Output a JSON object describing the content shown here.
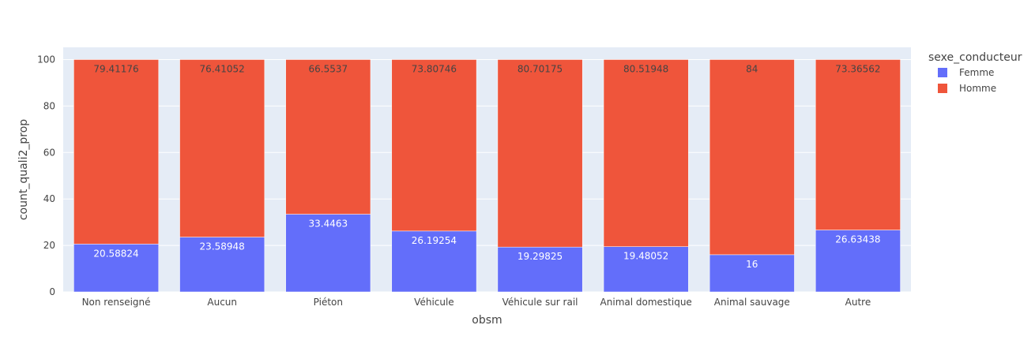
{
  "chart_data": {
    "type": "bar",
    "barmode": "stack",
    "categories": [
      "Non renseigné",
      "Aucun",
      "Piéton",
      "Véhicule",
      "Véhicule sur rail",
      "Animal domestique",
      "Animal sauvage",
      "Autre"
    ],
    "series": [
      {
        "name": "Femme",
        "color": "#636efa",
        "values": [
          20.58824,
          23.58948,
          33.4463,
          26.19254,
          19.29825,
          19.48052,
          16,
          26.63438
        ],
        "labels": [
          "20.58824",
          "23.58948",
          "33.4463",
          "26.19254",
          "19.29825",
          "19.48052",
          "16",
          "26.63438"
        ]
      },
      {
        "name": "Homme",
        "color": "#ef553b",
        "values": [
          79.41176,
          76.41052,
          66.5537,
          73.80746,
          80.70175,
          80.51948,
          84,
          73.36562
        ],
        "labels": [
          "79.41176",
          "76.41052",
          "66.5537",
          "73.80746",
          "80.70175",
          "80.51948",
          "84",
          "73.36562"
        ]
      }
    ],
    "xlabel": "obsm",
    "ylabel": "count_quali2_prop",
    "ylim": [
      0,
      105.26
    ],
    "yticks": [
      0,
      20,
      40,
      60,
      80,
      100
    ],
    "legend_title": "sexe_conducteur",
    "legend_position": "top-right",
    "grid": true,
    "plot_bg": "#e5ecf6"
  }
}
